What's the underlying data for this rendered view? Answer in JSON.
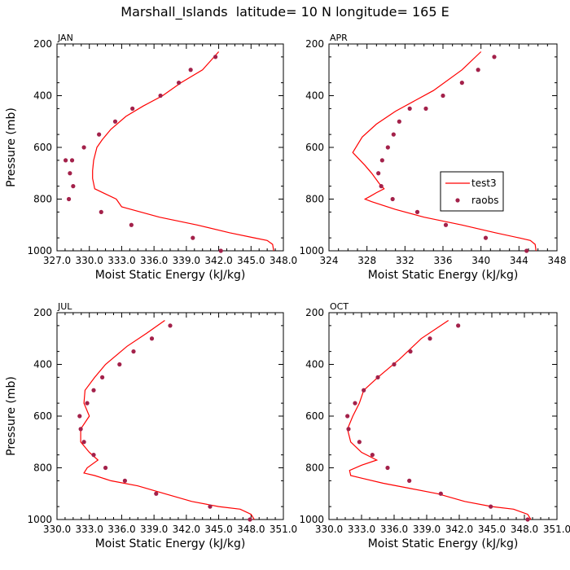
{
  "title": "Marshall_Islands  latitude= 10 N longitude= 165 E",
  "colors": {
    "line": "#ff0000",
    "points": "#a3214a",
    "axis": "#000000"
  },
  "chart_data": [
    {
      "type": "line",
      "panel_label": "JAN",
      "xlabel": "Moist Static Energy (kJ/kg)",
      "ylabel": "Pressure (mb)",
      "xlim": [
        327.0,
        348.0
      ],
      "ylim": [
        1000,
        200
      ],
      "x_ticks": [
        327.0,
        330.0,
        333.0,
        336.0,
        339.0,
        342.0,
        345.0,
        348.0
      ],
      "x_tick_labels": [
        "327.0",
        "330.0",
        "333.0",
        "336.0",
        "339.0",
        "342.0",
        "345.0",
        "348.0"
      ],
      "y_ticks": [
        200,
        400,
        600,
        800,
        1000
      ],
      "y_tick_labels": [
        "200",
        "400",
        "600",
        "800",
        "1000"
      ],
      "series": [
        {
          "name": "test3",
          "kind": "line",
          "x": [
            347.1,
            347.0,
            346.5,
            345.3,
            343.0,
            340.0,
            336.5,
            333.0,
            332.5,
            331.5,
            330.5,
            330.3,
            330.3,
            330.4,
            330.7,
            331.2,
            332.0,
            333.4,
            335.0,
            336.8,
            338.5,
            340.5,
            342.0
          ],
          "y": [
            1000,
            975,
            960,
            950,
            930,
            900,
            870,
            830,
            800,
            780,
            760,
            720,
            690,
            650,
            600,
            570,
            530,
            480,
            440,
            400,
            350,
            300,
            230
          ]
        },
        {
          "name": "raobs",
          "kind": "points",
          "x": [
            342.2,
            339.6,
            333.9,
            331.1,
            328.1,
            328.5,
            328.2,
            327.8,
            328.4,
            329.5,
            330.9,
            332.4,
            334.0,
            336.6,
            338.3,
            339.4,
            341.7
          ],
          "y": [
            1000,
            950,
            900,
            850,
            800,
            750,
            700,
            650,
            650,
            600,
            550,
            500,
            450,
            400,
            350,
            300,
            250
          ]
        }
      ]
    },
    {
      "type": "line",
      "panel_label": "APR",
      "xlabel": "Moist Static Energy (kJ/kg)",
      "ylabel": "",
      "xlim": [
        324,
        348
      ],
      "ylim": [
        1000,
        200
      ],
      "x_ticks": [
        324,
        328,
        332,
        336,
        340,
        344,
        348
      ],
      "x_tick_labels": [
        "324",
        "328",
        "332",
        "336",
        "340",
        "344",
        "348"
      ],
      "y_ticks": [
        200,
        400,
        600,
        800,
        1000
      ],
      "y_tick_labels": [
        "200",
        "400",
        "600",
        "800",
        "1000"
      ],
      "legend": {
        "position": "center-right",
        "entries": [
          "test3",
          "raobs"
        ]
      },
      "series": [
        {
          "name": "test3",
          "kind": "line",
          "x": [
            345.8,
            345.7,
            345.2,
            344.0,
            341.5,
            338.0,
            334.0,
            331.0,
            328.5,
            327.8,
            328.3,
            329.0,
            329.8,
            329.3,
            328.5,
            327.8,
            326.5,
            327.5,
            329.0,
            331.0,
            333.0,
            335.0,
            338.0,
            340.0
          ],
          "y": [
            1000,
            975,
            960,
            950,
            930,
            900,
            870,
            840,
            810,
            800,
            790,
            775,
            760,
            740,
            700,
            670,
            620,
            560,
            510,
            460,
            420,
            380,
            300,
            230
          ]
        },
        {
          "name": "raobs",
          "kind": "points",
          "x": [
            344.8,
            340.5,
            336.3,
            333.3,
            330.7,
            329.5,
            329.2,
            329.6,
            330.2,
            330.8,
            331.4,
            332.5,
            334.2,
            336.0,
            338.0,
            339.7,
            341.4
          ],
          "y": [
            1000,
            950,
            900,
            850,
            800,
            750,
            700,
            650,
            600,
            550,
            500,
            450,
            450,
            400,
            350,
            300,
            250
          ]
        }
      ]
    },
    {
      "type": "line",
      "panel_label": "JUL",
      "xlabel": "Moist Static Energy (kJ/kg)",
      "ylabel": "Pressure (mb)",
      "xlim": [
        330.0,
        351.0
      ],
      "ylim": [
        1000,
        200
      ],
      "x_ticks": [
        330.0,
        333.0,
        336.0,
        339.0,
        342.0,
        345.0,
        348.0,
        351.0
      ],
      "x_tick_labels": [
        "330.0",
        "333.0",
        "336.0",
        "339.0",
        "342.0",
        "345.0",
        "348.0",
        "351.0"
      ],
      "y_ticks": [
        200,
        400,
        600,
        800,
        1000
      ],
      "y_tick_labels": [
        "200",
        "400",
        "600",
        "800",
        "1000"
      ],
      "series": [
        {
          "name": "test3",
          "kind": "line",
          "x": [
            348.3,
            348.0,
            347.0,
            345.0,
            342.5,
            340.0,
            337.5,
            335.0,
            333.5,
            332.5,
            332.8,
            333.8,
            333.0,
            332.2,
            332.2,
            333.0,
            332.5,
            332.6,
            333.5,
            334.5,
            336.5,
            338.3,
            340.0
          ],
          "y": [
            1000,
            980,
            960,
            950,
            930,
            900,
            870,
            850,
            830,
            820,
            800,
            770,
            740,
            700,
            650,
            600,
            550,
            500,
            450,
            400,
            330,
            280,
            230
          ]
        },
        {
          "name": "raobs",
          "kind": "points",
          "x": [
            347.9,
            344.2,
            339.2,
            336.3,
            334.5,
            333.4,
            332.5,
            332.2,
            332.1,
            332.8,
            333.4,
            334.2,
            335.8,
            337.1,
            338.8,
            340.5
          ],
          "y": [
            1000,
            950,
            900,
            850,
            800,
            750,
            700,
            650,
            600,
            550,
            500,
            450,
            400,
            350,
            300,
            250
          ]
        }
      ]
    },
    {
      "type": "line",
      "panel_label": "OCT",
      "xlabel": "Moist Static Energy (kJ/kg)",
      "ylabel": "",
      "xlim": [
        330.0,
        351.0
      ],
      "ylim": [
        1000,
        200
      ],
      "x_ticks": [
        330.0,
        333.0,
        336.0,
        339.0,
        342.0,
        345.0,
        348.0,
        351.0
      ],
      "x_tick_labels": [
        "330.0",
        "333.0",
        "336.0",
        "339.0",
        "342.0",
        "345.0",
        "348.0",
        "351.0"
      ],
      "y_ticks": [
        200,
        400,
        600,
        800,
        1000
      ],
      "y_tick_labels": [
        "200",
        "400",
        "600",
        "800",
        "1000"
      ],
      "series": [
        {
          "name": "test3",
          "kind": "line",
          "x": [
            348.6,
            348.3,
            347.0,
            345.0,
            342.5,
            340.0,
            337.5,
            335.0,
            333.0,
            332.0,
            331.9,
            333.0,
            334.4,
            333.0,
            332.0,
            331.7,
            332.2,
            332.8,
            333.2,
            334.5,
            336.5,
            338.5,
            341.0
          ],
          "y": [
            1000,
            980,
            960,
            950,
            930,
            900,
            880,
            860,
            840,
            830,
            810,
            790,
            770,
            740,
            700,
            650,
            600,
            550,
            500,
            450,
            380,
            300,
            230
          ]
        },
        {
          "name": "raobs",
          "kind": "points",
          "x": [
            348.3,
            344.9,
            340.3,
            337.4,
            335.4,
            334.0,
            332.8,
            331.8,
            331.7,
            332.4,
            333.2,
            334.5,
            336.0,
            337.5,
            339.3,
            341.9
          ],
          "y": [
            1000,
            950,
            900,
            850,
            800,
            750,
            700,
            650,
            600,
            550,
            500,
            450,
            400,
            350,
            300,
            250
          ]
        }
      ]
    }
  ]
}
